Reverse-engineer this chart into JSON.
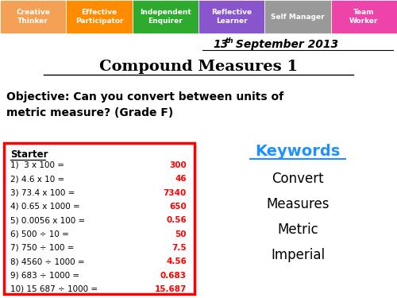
{
  "title": "Compound Measures 1",
  "date_num": "13",
  "date_sup": "th",
  "date_rest": " September 2013",
  "objective_line1": "Objective: Can you convert between units of",
  "objective_line2": "metric measure? (Grade F)",
  "starter_label": "Starter",
  "starter_questions": [
    "1)  3 x 100 =",
    "2) 4.6 x 10 =",
    "3) 73.4 x 100 =",
    "4) 0.65 x 1000 =",
    "5) 0.0056 x 100 =",
    "6) 500 ÷ 10 =",
    "7) 750 ÷ 100 =",
    "8) 4560 ÷ 1000 =",
    "9) 683 ÷ 1000 =",
    "10) 15 687 ÷ 1000 ="
  ],
  "starter_answers": [
    "300",
    "46",
    "7340",
    "650",
    "0.56",
    "50",
    "7.5",
    "4.56",
    "0.683",
    "15.687"
  ],
  "keywords_title": "Keywords",
  "keywords": [
    "Convert",
    "Measures",
    "Metric",
    "Imperial"
  ],
  "tabs": [
    {
      "label": "Creative\nThinker",
      "color": "#F4A055"
    },
    {
      "label": "Effective\nParticipator",
      "color": "#FF8C00"
    },
    {
      "label": "Independent\nEnquirer",
      "color": "#2EAA2E"
    },
    {
      "label": "Reflective\nLearner",
      "color": "#8855CC"
    },
    {
      "label": "Self Manager",
      "color": "#999999"
    },
    {
      "label": "Team\nWorker",
      "color": "#EE44AA"
    }
  ],
  "bg_color": "#FFFFFF",
  "tab_text_color": "#FFFFFF",
  "answer_color": "#FF0000",
  "keywords_color": "#1E90FF",
  "box_border_color": "#FF0000"
}
